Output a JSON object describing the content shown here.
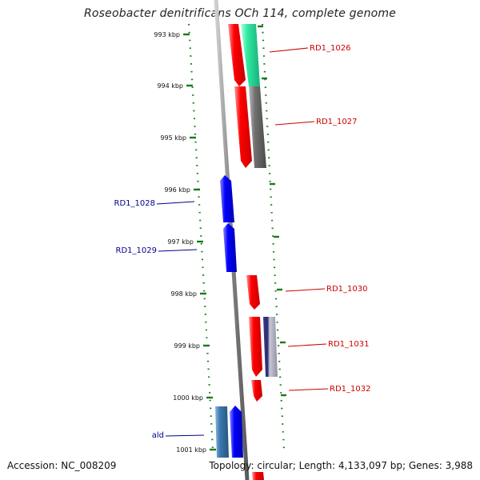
{
  "title": "Roseobacter denitrificans OCh 114, complete genome",
  "footer": {
    "accession": "Accession: NC_008209",
    "summary": "Topology: circular; Length: 4,133,097 bp; Genes: 3,988"
  },
  "ticks": [
    "993 kbp",
    "994 kbp",
    "995 kbp",
    "996 kbp",
    "997 kbp",
    "998 kbp",
    "999 kbp",
    "1000 kbp",
    "1001 kbp"
  ],
  "gene_labels": {
    "forward": [
      "RD1_1026",
      "RD1_1027",
      "RD1_1030",
      "RD1_1031",
      "RD1_1032"
    ],
    "reverse": [
      "RD1_1028",
      "RD1_1029",
      "ald"
    ]
  },
  "colors": {
    "forward_label": "#cc0000",
    "reverse_label": "#00008b",
    "tick": "#1a7a1a",
    "red_gene": "#ff0000",
    "blue_gene": "#0000ff",
    "teal_gene": "#33e0a0",
    "gray_gene": "#707070",
    "steel_gene": "#3a78b0",
    "backbone": "#8a8a8a"
  }
}
